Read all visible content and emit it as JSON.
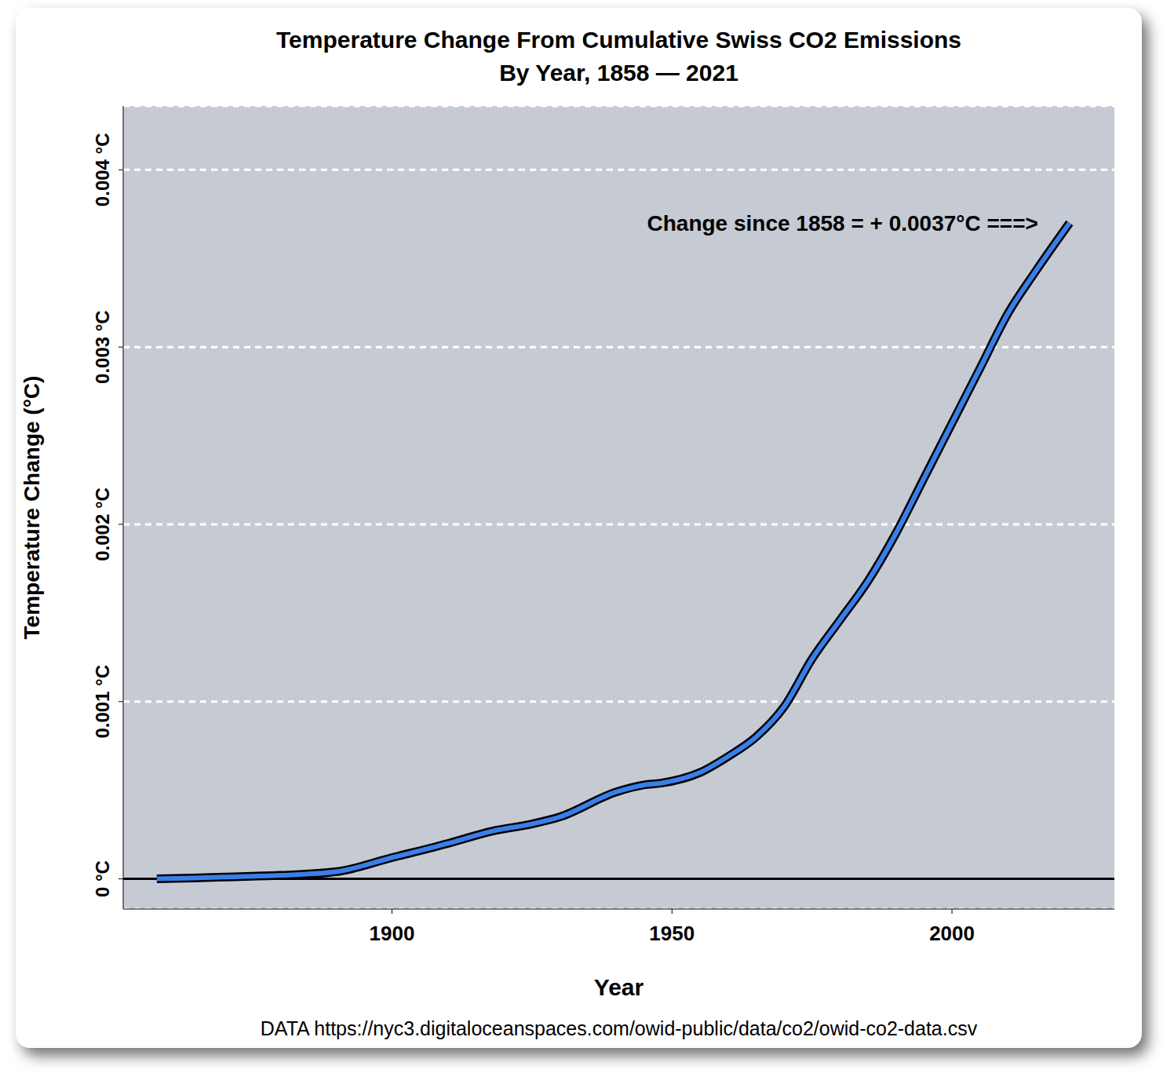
{
  "chart_data": {
    "type": "line",
    "title": "Temperature Change From Cumulative Swiss CO2 Emissions",
    "subtitle": "By Year, 1858 — 2021",
    "x_label": "Year",
    "y_label": "Temperature Change (°C)",
    "annotation": "Change since 1858 = + 0.0037°C ===>",
    "source": "DATA https://nyc3.digitaloceanspaces.com/owid-public/data/co2/owid-co2-data.csv",
    "x": [
      1858,
      1870,
      1880,
      1890,
      1900,
      1910,
      1918,
      1925,
      1930,
      1940,
      1945,
      1948,
      1955,
      1960,
      1965,
      1970,
      1975,
      1980,
      1985,
      1990,
      1995,
      2000,
      2005,
      2010,
      2015,
      2021
    ],
    "values": [
      0,
      1e-05,
      2e-05,
      4e-05,
      0.00012,
      0.0002,
      0.00027,
      0.00031,
      0.00035,
      0.00049,
      0.00053,
      0.00054,
      0.0006,
      0.00069,
      0.0008,
      0.00097,
      0.00124,
      0.00146,
      0.00168,
      0.00195,
      0.00226,
      0.00257,
      0.00288,
      0.00319,
      0.00343,
      0.0037
    ],
    "color": "#3a7ee8",
    "xlim": [
      1852,
      2029
    ],
    "xticks": [
      1900,
      1950,
      2000
    ],
    "ylim": [
      -0.00017,
      0.00436
    ],
    "yticks": [
      {
        "value": 0,
        "label": "0 °C"
      },
      {
        "value": 0.001,
        "label": "0.001 °C"
      },
      {
        "value": 0.002,
        "label": "0.002 °C"
      },
      {
        "value": 0.003,
        "label": "0.003 °C"
      },
      {
        "value": 0.004,
        "label": "0.004 °C"
      }
    ],
    "grid": true
  }
}
